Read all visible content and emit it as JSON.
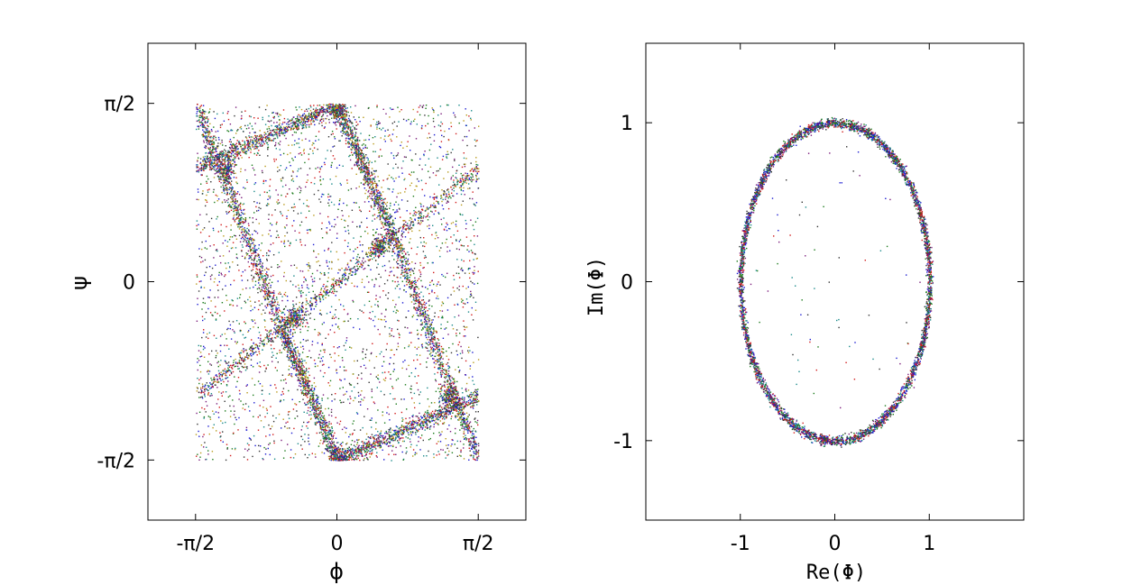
{
  "chart_data": [
    {
      "type": "scatter",
      "xlabel": "ϕ",
      "ylabel": "ψ",
      "xlim": [
        -2.1,
        2.1
      ],
      "ylim": [
        -2.1,
        2.1
      ],
      "xticks": [
        {
          "value": -1.5708,
          "label": "-π/2"
        },
        {
          "value": 0,
          "label": "0"
        },
        {
          "value": 1.5708,
          "label": "π/2"
        }
      ],
      "yticks": [
        {
          "value": -1.5708,
          "label": "-π/2"
        },
        {
          "value": 0,
          "label": "0"
        },
        {
          "value": 1.5708,
          "label": "π/2"
        }
      ],
      "grid": false,
      "series": [
        {
          "values": [
            [
              -1.5708,
              1.0
            ],
            [
              0,
              1.5708
            ]
          ]
        },
        {
          "values": [
            [
              -1.5708,
              -1.0
            ],
            [
              1.5708,
              1.0
            ]
          ]
        },
        {
          "values": [
            [
              0,
              -1.5708
            ],
            [
              1.5708,
              -1.0
            ]
          ]
        },
        {
          "values": [
            [
              -1.5708,
              1.5708
            ],
            [
              -0.63,
              -0.38
            ]
          ]
        },
        {
          "values": [
            [
              -0.63,
              -0.38
            ],
            [
              0,
              -1.5708
            ]
          ]
        },
        {
          "values": [
            [
              0,
              1.5708
            ],
            [
              0.63,
              0.38
            ]
          ]
        },
        {
          "values": [
            [
              0.63,
              0.38
            ],
            [
              1.5708,
              -1.5708
            ]
          ]
        }
      ],
      "colors": [
        "#d11a1a",
        "#1a7a1a",
        "#1a1ad1",
        "#7a1a7a",
        "#1a8a8a",
        "#b89a1a",
        "#333333"
      ]
    },
    {
      "type": "scatter",
      "xlabel": "Re(Φ)",
      "ylabel": "Im(Φ)",
      "xlim": [
        -2,
        2
      ],
      "ylim": [
        -1.5,
        1.5
      ],
      "xticks": [
        {
          "value": -1,
          "label": "-1"
        },
        {
          "value": 0,
          "label": "0"
        },
        {
          "value": 1,
          "label": "1"
        }
      ],
      "yticks": [
        {
          "value": -1,
          "label": "-1"
        },
        {
          "value": 0,
          "label": "0"
        },
        {
          "value": 1,
          "label": "1"
        }
      ],
      "grid": false,
      "series": [
        {
          "shape": "ellipse",
          "center": [
            0,
            0
          ],
          "radii": [
            1,
            1
          ]
        }
      ],
      "colors": [
        "#d11a1a",
        "#1a7a1a",
        "#1a1ad1",
        "#7a1a7a",
        "#1a8a8a",
        "#333333"
      ]
    }
  ]
}
